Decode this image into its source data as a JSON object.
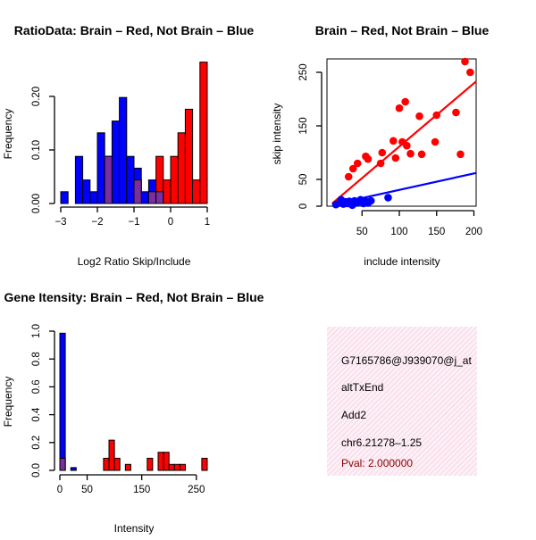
{
  "colors": {
    "brain": "#ff0000",
    "not_brain": "#0000ff",
    "overlap": "#7a2fa0",
    "info_bg": "#fbe3ef",
    "pval": "#8b0000"
  },
  "chart_data": [
    {
      "id": "ratio-hist",
      "type": "bar",
      "title": "RatioData: Brain – Red, Not Brain – Blue",
      "xlabel": "Log2 Ratio Skip/Include",
      "ylabel": "Frequency",
      "xlim": [
        -3,
        1
      ],
      "ylim": [
        0,
        0.26
      ],
      "xticks": [
        -3,
        -2,
        -1,
        0,
        1
      ],
      "yticks": [
        0.0,
        0.1,
        0.2
      ],
      "ytick_labels": [
        "0.00",
        "0.10",
        "0.20"
      ],
      "bin_start": -3.0,
      "bin_width": 0.2,
      "series": [
        {
          "name": "Not Brain",
          "color": "blue",
          "values": [
            0.022,
            0,
            0.088,
            0.044,
            0.022,
            0.132,
            0.088,
            0.154,
            0.198,
            0.088,
            0.066,
            0.022,
            0.044,
            0.022,
            0,
            0,
            0,
            0,
            0,
            0
          ]
        },
        {
          "name": "Brain",
          "color": "red",
          "values": [
            0,
            0,
            0,
            0,
            0,
            0,
            0.088,
            0,
            0,
            0,
            0.044,
            0,
            0.022,
            0.088,
            0.044,
            0.088,
            0.132,
            0.176,
            0.044,
            0.264
          ]
        }
      ]
    },
    {
      "id": "intensity-scatter",
      "type": "scatter",
      "title": "Brain – Red, Not Brain – Blue",
      "xlabel": "include intensity",
      "ylabel": "skip intensity",
      "xlim": [
        3,
        203
      ],
      "ylim": [
        0,
        275
      ],
      "xticks": [
        50,
        100,
        150,
        200
      ],
      "yticks": [
        0,
        50,
        150,
        250
      ],
      "series": [
        {
          "name": "Brain",
          "color": "red",
          "points": [
            [
              27,
              8
            ],
            [
              32,
              55
            ],
            [
              38,
              70
            ],
            [
              44,
              80
            ],
            [
              55,
              93
            ],
            [
              58,
              88
            ],
            [
              75,
              80
            ],
            [
              77,
              100
            ],
            [
              92,
              122
            ],
            [
              95,
              90
            ],
            [
              100,
              183
            ],
            [
              104,
              120
            ],
            [
              108,
              195
            ],
            [
              110,
              113
            ],
            [
              115,
              98
            ],
            [
              127,
              168
            ],
            [
              130,
              97
            ],
            [
              148,
              120
            ],
            [
              150,
              170
            ],
            [
              176,
              175
            ],
            [
              182,
              97
            ],
            [
              188,
              270
            ],
            [
              195,
              250
            ]
          ],
          "fit": [
            [
              10,
              5
            ],
            [
              203,
              233
            ]
          ]
        },
        {
          "name": "Not Brain",
          "color": "blue",
          "points": [
            [
              15,
              3
            ],
            [
              20,
              6
            ],
            [
              22,
              12
            ],
            [
              25,
              4
            ],
            [
              28,
              8
            ],
            [
              30,
              5
            ],
            [
              33,
              9
            ],
            [
              35,
              4
            ],
            [
              37,
              2
            ],
            [
              40,
              10
            ],
            [
              42,
              6
            ],
            [
              45,
              8
            ],
            [
              48,
              12
            ],
            [
              52,
              5
            ],
            [
              55,
              9
            ],
            [
              58,
              6
            ],
            [
              62,
              10
            ],
            [
              85,
              16
            ]
          ],
          "fit": [
            [
              10,
              3
            ],
            [
              203,
              62
            ]
          ]
        }
      ]
    },
    {
      "id": "gene-intensity-hist",
      "type": "bar",
      "title": "Gene Itensity: Brain – Red, Not Brain – Blue",
      "xlabel": "Intensity",
      "ylabel": "Frequency",
      "xlim": [
        0,
        270
      ],
      "ylim": [
        0,
        1.0
      ],
      "xticks": [
        0,
        50,
        150,
        250
      ],
      "yticks": [
        0.0,
        0.2,
        0.4,
        0.6,
        0.8,
        1.0
      ],
      "ytick_labels": [
        "0.0",
        "0.2",
        "0.4",
        "0.6",
        "0.8",
        "1.0"
      ],
      "bin_start": 0,
      "bin_width": 10,
      "series": [
        {
          "name": "Not Brain",
          "color": "blue",
          "values": [
            0.985,
            0,
            0.02,
            0,
            0,
            0,
            0,
            0,
            0,
            0,
            0,
            0,
            0,
            0,
            0,
            0,
            0,
            0,
            0,
            0,
            0,
            0,
            0,
            0,
            0,
            0,
            0
          ]
        },
        {
          "name": "Brain",
          "color": "red",
          "values": [
            0.087,
            0,
            0,
            0,
            0,
            0,
            0,
            0,
            0.087,
            0.217,
            0.087,
            0,
            0.043,
            0,
            0,
            0,
            0.087,
            0,
            0.13,
            0.13,
            0.043,
            0.043,
            0.043,
            0,
            0,
            0,
            0.087
          ]
        }
      ]
    }
  ],
  "info_panel": {
    "gene_id": "G7165786@J939070@j_at",
    "event_type": "altTxEnd",
    "gene_symbol": "Add2",
    "location": "chr6.21278–1.25",
    "pval": "Pval: 2.000000"
  }
}
